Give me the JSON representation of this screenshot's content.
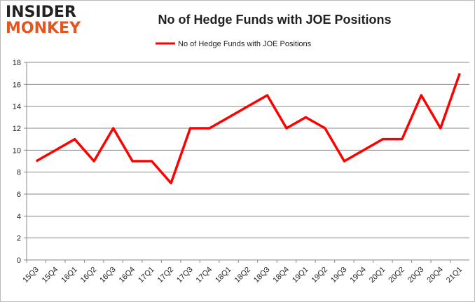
{
  "logo": {
    "line1": "INSIDER",
    "line2": "MONKEY"
  },
  "chart_data": {
    "type": "line",
    "title": "No of Hedge Funds with JOE Positions",
    "xlabel": "",
    "ylabel": "",
    "categories": [
      "15Q3",
      "15Q4",
      "16Q1",
      "16Q2",
      "16Q3",
      "16Q4",
      "17Q1",
      "17Q2",
      "17Q3",
      "17Q4",
      "18Q1",
      "18Q2",
      "18Q3",
      "18Q4",
      "19Q1",
      "19Q2",
      "19Q3",
      "19Q4",
      "20Q1",
      "20Q2",
      "20Q3",
      "20Q4",
      "21Q1"
    ],
    "series": [
      {
        "name": "No of Hedge Funds with JOE Positions",
        "color": "#ff0000",
        "values": [
          9,
          10,
          11,
          9,
          12,
          9,
          9,
          7,
          12,
          12,
          13,
          14,
          15,
          12,
          13,
          12,
          9,
          10,
          11,
          11,
          15,
          12,
          17
        ]
      }
    ],
    "ylim": [
      0,
      18
    ],
    "yticks": [
      0,
      2,
      4,
      6,
      8,
      10,
      12,
      14,
      16,
      18
    ],
    "grid": true,
    "legend": "top-center"
  }
}
